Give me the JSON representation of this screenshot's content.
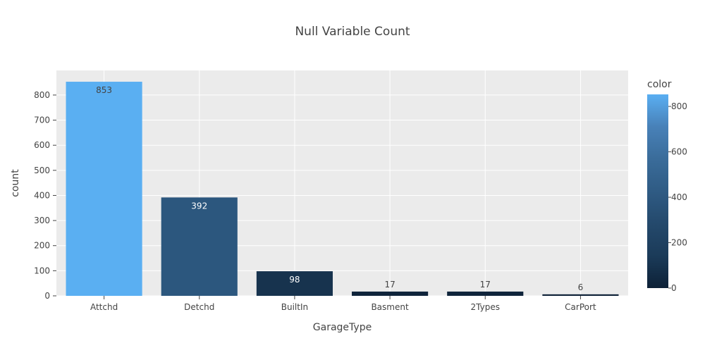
{
  "chart_data": {
    "type": "bar",
    "title": "Null Variable Count",
    "xlabel": "GarageType",
    "ylabel": "count",
    "categories": [
      "Attchd",
      "Detchd",
      "BuiltIn",
      "Basment",
      "2Types",
      "CarPort"
    ],
    "values": [
      853,
      392,
      98,
      17,
      17,
      6
    ],
    "ylim": [
      0,
      898
    ],
    "yticks": [
      0,
      100,
      200,
      300,
      400,
      500,
      600,
      700,
      800
    ],
    "grid": true,
    "colorbar": {
      "title": "color",
      "range": [
        0,
        853
      ],
      "ticks": [
        0,
        200,
        400,
        600,
        800
      ],
      "colorscale": [
        "#0d2137",
        "#1b3b59",
        "#24496c",
        "#2f5b84",
        "#3a6c9a",
        "#4881b8",
        "#5aaff2"
      ]
    },
    "plot_background": "#ebebeb"
  }
}
